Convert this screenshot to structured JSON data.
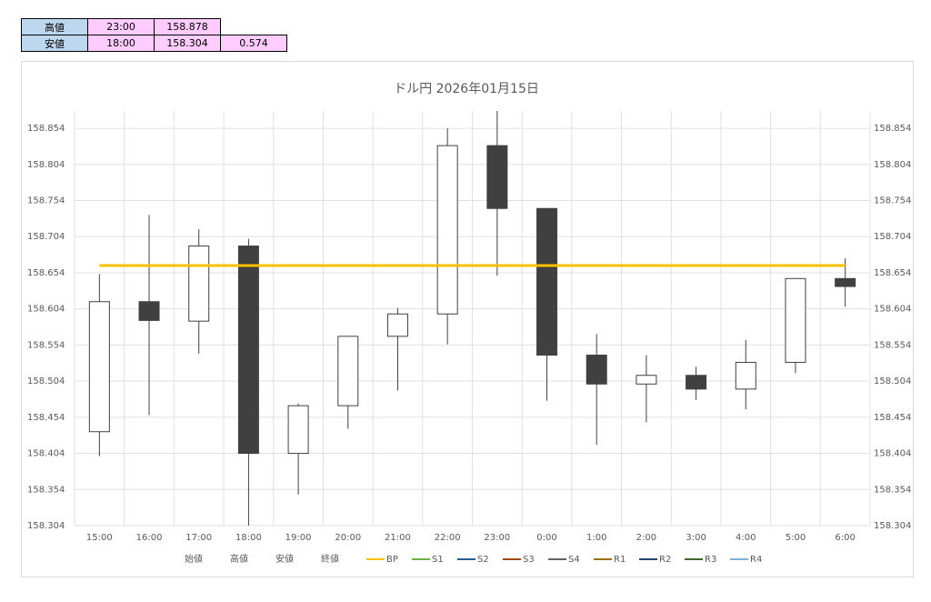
{
  "table": {
    "rows": [
      [
        "高値",
        "23:00",
        "158.878"
      ],
      [
        "安値",
        "18:00",
        "158.304",
        "0.574"
      ]
    ]
  },
  "chart_data": {
    "type": "candlestick",
    "title": "ドル円 2026年01月15日",
    "categories": [
      "15:00",
      "16:00",
      "17:00",
      "18:00",
      "19:00",
      "20:00",
      "21:00",
      "22:00",
      "23:00",
      "0:00",
      "1:00",
      "2:00",
      "3:00",
      "4:00",
      "5:00",
      "6:00"
    ],
    "series": [
      {
        "name": "始値",
        "values": [
          158.434,
          158.614,
          158.587,
          158.691,
          158.404,
          158.47,
          158.566,
          158.597,
          158.83,
          158.743,
          158.54,
          158.5,
          158.512,
          158.493,
          158.53,
          158.646
        ]
      },
      {
        "name": "高値",
        "values": [
          158.652,
          158.734,
          158.714,
          158.701,
          158.473,
          158.566,
          158.605,
          158.854,
          158.878,
          158.743,
          158.569,
          158.54,
          158.524,
          158.561,
          158.646,
          158.674
        ]
      },
      {
        "name": "安値",
        "values": [
          158.4,
          158.457,
          158.542,
          158.304,
          158.347,
          158.438,
          158.491,
          158.555,
          158.65,
          158.477,
          158.416,
          158.447,
          158.478,
          158.465,
          158.515,
          158.607
        ]
      },
      {
        "name": "終値",
        "values": [
          158.614,
          158.588,
          158.691,
          158.404,
          158.47,
          158.566,
          158.597,
          158.83,
          158.743,
          158.54,
          158.5,
          158.512,
          158.493,
          158.53,
          158.646,
          158.635
        ]
      },
      {
        "name": "BP",
        "color": "#ffc000",
        "values": [
          158.664,
          158.664,
          158.664,
          158.664,
          158.664,
          158.664,
          158.664,
          158.664,
          158.664,
          158.664,
          158.664,
          158.664,
          158.664,
          158.664,
          158.664,
          158.664
        ]
      },
      {
        "name": "S1",
        "color": "#70ad47",
        "values": [
          null,
          null,
          null,
          null,
          null,
          null,
          null,
          null,
          null,
          null,
          null,
          null,
          null,
          null,
          null,
          null
        ]
      },
      {
        "name": "S2",
        "color": "#255e91",
        "values": [
          null,
          null,
          null,
          null,
          null,
          null,
          null,
          null,
          null,
          null,
          null,
          null,
          null,
          null,
          null,
          null
        ]
      },
      {
        "name": "S3",
        "color": "#9e480e",
        "values": [
          null,
          null,
          null,
          null,
          null,
          null,
          null,
          null,
          null,
          null,
          null,
          null,
          null,
          null,
          null,
          null
        ]
      },
      {
        "name": "S4",
        "color": "#636363",
        "values": [
          null,
          null,
          null,
          null,
          null,
          null,
          null,
          null,
          null,
          null,
          null,
          null,
          null,
          null,
          null,
          null
        ]
      },
      {
        "name": "R1",
        "color": "#997300",
        "values": [
          null,
          null,
          null,
          null,
          null,
          null,
          null,
          null,
          null,
          null,
          null,
          null,
          null,
          null,
          null,
          null
        ]
      },
      {
        "name": "R2",
        "color": "#264478",
        "values": [
          null,
          null,
          null,
          null,
          null,
          null,
          null,
          null,
          null,
          null,
          null,
          null,
          null,
          null,
          null,
          null
        ]
      },
      {
        "name": "R3",
        "color": "#43682b",
        "values": [
          null,
          null,
          null,
          null,
          null,
          null,
          null,
          null,
          null,
          null,
          null,
          null,
          null,
          null,
          null,
          null
        ]
      },
      {
        "name": "R4",
        "color": "#7cafdd",
        "values": [
          null,
          null,
          null,
          null,
          null,
          null,
          null,
          null,
          null,
          null,
          null,
          null,
          null,
          null,
          null,
          null
        ]
      }
    ],
    "up_color": "#ffffff",
    "down_color": "#404040",
    "ylim": [
      158.304,
      158.878
    ],
    "yticks": [
      158.304,
      158.354,
      158.404,
      158.454,
      158.504,
      158.554,
      158.604,
      158.654,
      158.704,
      158.754,
      158.804,
      158.854
    ],
    "grid": true
  }
}
